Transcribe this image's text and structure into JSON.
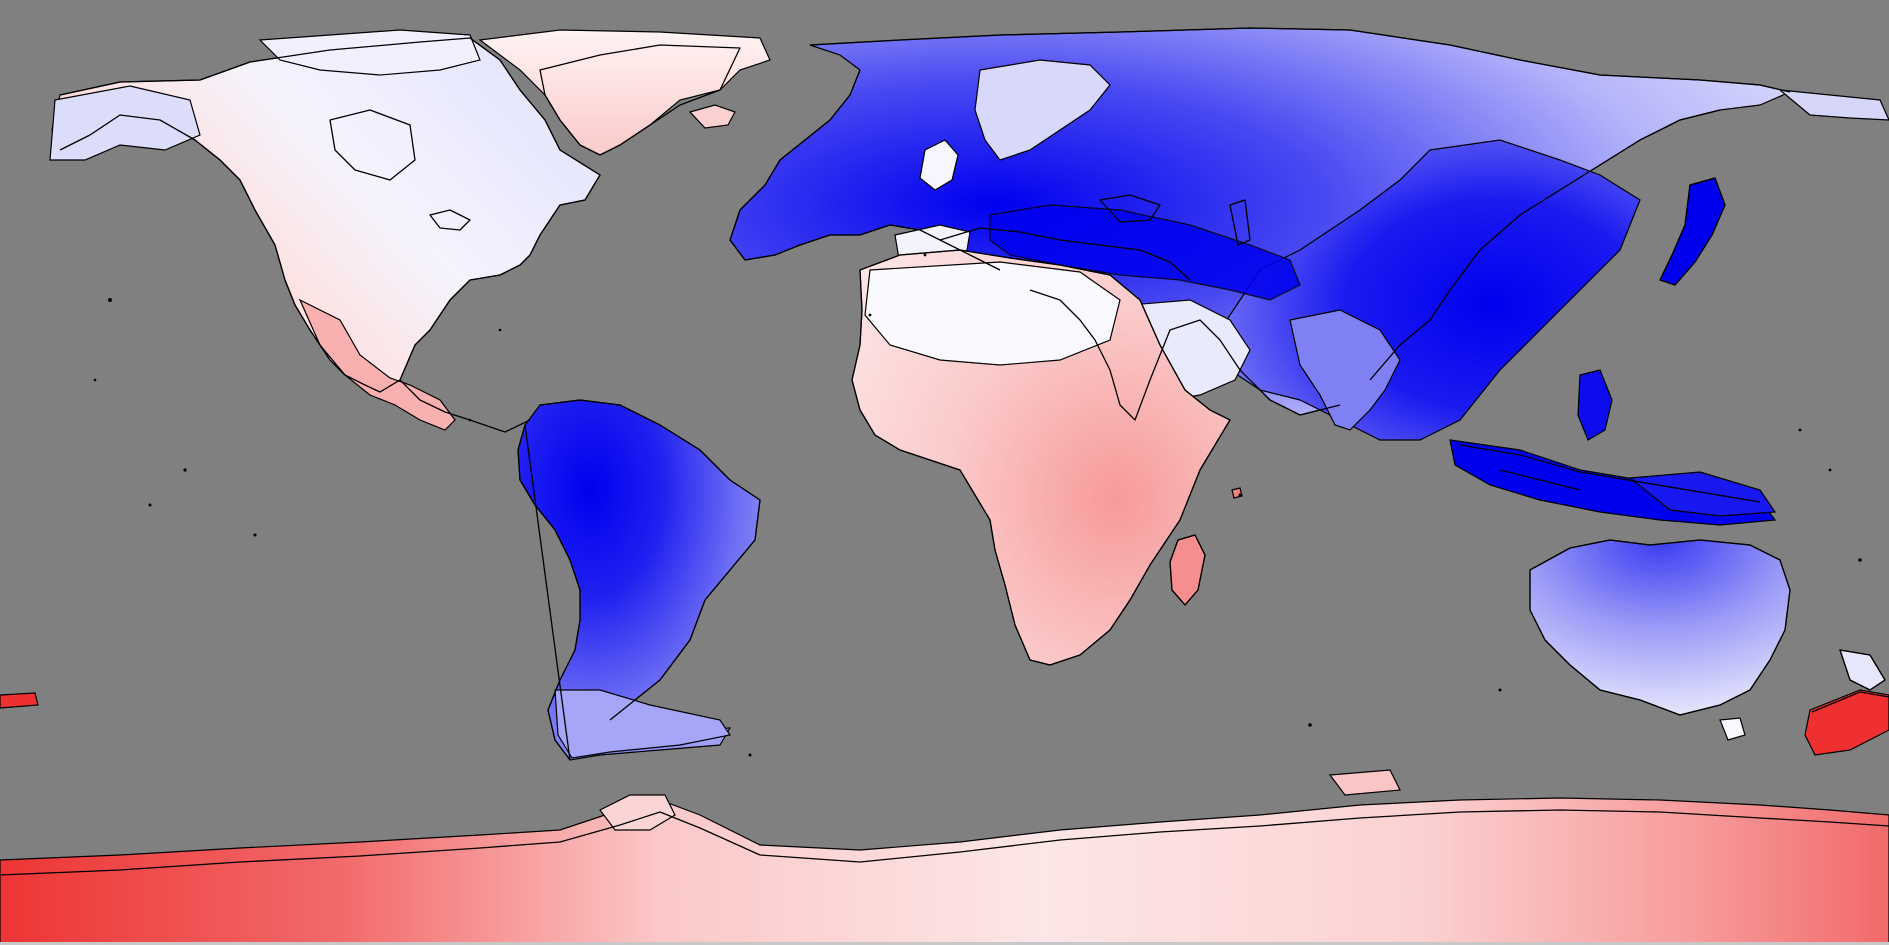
{
  "map": {
    "projection": "equirectangular",
    "background": "#808080",
    "palette": {
      "strong_blue": "#0000ef",
      "blue": "#3a3af2",
      "mid_blue": "#7a7af5",
      "light_blue": "#b4b4fa",
      "pale_blue": "#e6e6fd",
      "white": "#fdfdfd",
      "pale_red": "#fde2e2",
      "light_red": "#f9bcbc",
      "mid_red": "#f79a9a",
      "red": "#f26a6a",
      "strong_red": "#ee3030"
    },
    "coastline_color": "#000000"
  }
}
